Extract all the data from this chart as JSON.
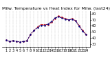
{
  "title": "Milw. Temperature vs Heat Index for Milw. (last24)",
  "temp_data": [
    36,
    34,
    35,
    34,
    33,
    34,
    35,
    46,
    52,
    58,
    62,
    62,
    62,
    66,
    72,
    76,
    74,
    72,
    70,
    72,
    68,
    60,
    52,
    46
  ],
  "heat_index": [
    36,
    34,
    35,
    34,
    33,
    34,
    35,
    46,
    52,
    57,
    61,
    61,
    63,
    67,
    73,
    75,
    73,
    71,
    70,
    71,
    68,
    59,
    51,
    45
  ],
  "x_labels": [
    "1",
    "2",
    "3",
    "4",
    "5",
    "6",
    "7",
    "8",
    "9",
    "10",
    "11",
    "12",
    "13",
    "14",
    "15",
    "16",
    "17",
    "18",
    "19",
    "20",
    "21",
    "22",
    "23",
    "24"
  ],
  "y_ticks": [
    30,
    40,
    50,
    60,
    70,
    80
  ],
  "ylim": [
    25,
    85
  ],
  "temp_color": "#cc0000",
  "heat_color": "#000080",
  "bg_color": "#ffffff",
  "grid_color": "#888888",
  "title_fontsize": 4.5,
  "tick_fontsize": 3.5,
  "line_width": 0.7,
  "marker_size": 1.5
}
